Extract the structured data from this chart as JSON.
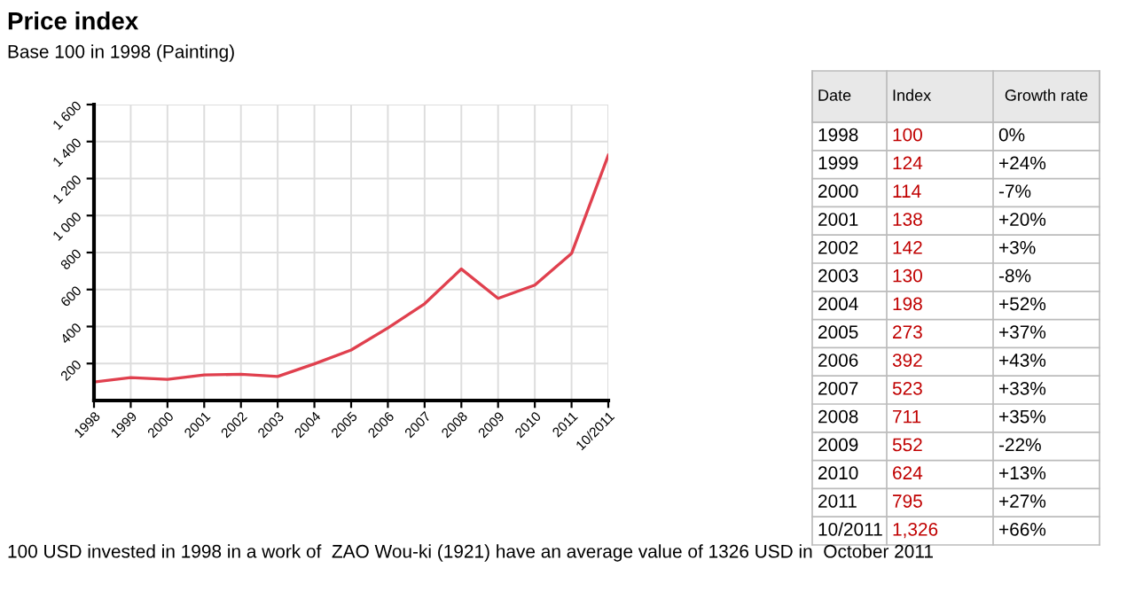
{
  "chart_data": {
    "type": "line",
    "title": "Price index",
    "subtitle": "Base 100 in 1998 (Painting)",
    "categories": [
      "1998",
      "1999",
      "2000",
      "2001",
      "2002",
      "2003",
      "2004",
      "2005",
      "2006",
      "2007",
      "2008",
      "2009",
      "2010",
      "2011",
      "10/2011"
    ],
    "series": [
      {
        "color": "#e0404e",
        "values": [
          100,
          124,
          114,
          138,
          142,
          130,
          198,
          273,
          392,
          523,
          711,
          552,
          624,
          795,
          1326
        ]
      }
    ],
    "value_labels": [
      "100",
      "124",
      "114",
      "138",
      "142",
      "130",
      "198",
      "273",
      "392",
      "523",
      "711",
      "552",
      "624",
      "795",
      "1,326"
    ],
    "ylim": [
      0,
      1600
    ],
    "yticks": [
      200,
      400,
      600,
      800,
      {
        "value": 1000,
        "label": "1 000"
      },
      {
        "value": 1200,
        "label": "1 200"
      },
      {
        "value": 1400,
        "label": "1 400"
      },
      {
        "value": 1600,
        "label": "1 600"
      }
    ],
    "grid": true,
    "marker": "none",
    "line_style": "solid",
    "annotations": [
      "100 USD invested in 1998 in a work of  ZAO Wou-ki (1921) have an average value of 1326 USD in  October 2011",
      "Date",
      "Index",
      "Growth rate",
      "0%",
      "+24%",
      "-7%",
      "+20%",
      "+3%",
      "-8%",
      "+52%",
      "+37%",
      "+43%",
      "+33%",
      "+35%",
      "-22%",
      "+13%",
      "+27%",
      "+66%"
    ]
  }
}
